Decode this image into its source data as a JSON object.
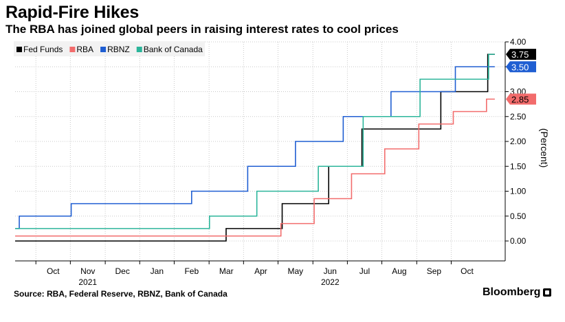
{
  "header": {
    "title": "Rapid-Fire Hikes",
    "subtitle": "The RBA has joined global peers in raising interest rates to cool prices"
  },
  "footer": {
    "source": "Source: RBA, Federal Reserve, RBNZ, Bank of Canada",
    "brand": "Bloomberg"
  },
  "chart_data": {
    "type": "line",
    "step": true,
    "title": "Rapid-Fire Hikes",
    "subtitle": "The RBA has joined global peers in raising interest rates to cool prices",
    "xlabel": "",
    "ylabel": "(Percent)",
    "x_range": [
      2021.7,
      2022.88
    ],
    "ylim": [
      -0.4,
      4.0
    ],
    "y_ticks": [
      "0.00",
      "0.50",
      "1.00",
      "1.50",
      "2.00",
      "2.50",
      "3.00",
      "3.50",
      "4.00"
    ],
    "y_tick_values": [
      0,
      0.5,
      1.0,
      1.5,
      2.0,
      2.5,
      3.0,
      3.5,
      4.0
    ],
    "x_ticks": [
      {
        "label": "Oct",
        "year": "",
        "x": 2021.75
      },
      {
        "label": "Nov",
        "year": "2021",
        "x": 2021.833
      },
      {
        "label": "Dec",
        "year": "",
        "x": 2021.917
      },
      {
        "label": "Jan",
        "year": "",
        "x": 2022.0
      },
      {
        "label": "Feb",
        "year": "",
        "x": 2022.083
      },
      {
        "label": "Mar",
        "year": "",
        "x": 2022.167
      },
      {
        "label": "Apr",
        "year": "",
        "x": 2022.25
      },
      {
        "label": "May",
        "year": "",
        "x": 2022.333
      },
      {
        "label": "Jun",
        "year": "2022",
        "x": 2022.417
      },
      {
        "label": "Jul",
        "year": "",
        "x": 2022.5
      },
      {
        "label": "Aug",
        "year": "",
        "x": 2022.583
      },
      {
        "label": "Sep",
        "year": "",
        "x": 2022.667
      },
      {
        "label": "Oct",
        "year": "",
        "x": 2022.75
      }
    ],
    "legend_position": "top-left",
    "series": [
      {
        "name": "Fed Funds",
        "color": "#000000",
        "end_label": "3.75",
        "points": [
          [
            2021.7,
            0.0
          ],
          [
            2022.208,
            0.25
          ],
          [
            2022.343,
            0.75
          ],
          [
            2022.455,
            1.5
          ],
          [
            2022.535,
            2.25
          ],
          [
            2022.725,
            3.0
          ],
          [
            2022.838,
            3.75
          ],
          [
            2022.855,
            3.75
          ]
        ]
      },
      {
        "name": "RBA",
        "color": "#f26c6c",
        "end_label": "2.85",
        "points": [
          [
            2021.7,
            0.1
          ],
          [
            2022.34,
            0.35
          ],
          [
            2022.42,
            0.85
          ],
          [
            2022.51,
            1.35
          ],
          [
            2022.59,
            1.85
          ],
          [
            2022.672,
            2.35
          ],
          [
            2022.755,
            2.6
          ],
          [
            2022.835,
            2.85
          ],
          [
            2022.855,
            2.85
          ]
        ]
      },
      {
        "name": "RBNZ",
        "color": "#1f5ed2",
        "end_label": "3.50",
        "points": [
          [
            2021.7,
            0.25
          ],
          [
            2021.71,
            0.5
          ],
          [
            2021.835,
            0.75
          ],
          [
            2022.125,
            1.0
          ],
          [
            2022.26,
            1.5
          ],
          [
            2022.375,
            2.0
          ],
          [
            2022.49,
            2.5
          ],
          [
            2022.605,
            3.0
          ],
          [
            2022.76,
            3.5
          ],
          [
            2022.855,
            3.5
          ]
        ]
      },
      {
        "name": "Bank of Canada",
        "color": "#2bb59a",
        "end_label": "",
        "points": [
          [
            2021.7,
            0.25
          ],
          [
            2022.168,
            0.5
          ],
          [
            2022.282,
            1.0
          ],
          [
            2022.43,
            1.5
          ],
          [
            2022.538,
            2.5
          ],
          [
            2022.675,
            3.25
          ],
          [
            2022.84,
            3.75
          ],
          [
            2022.855,
            3.75
          ]
        ]
      }
    ]
  }
}
